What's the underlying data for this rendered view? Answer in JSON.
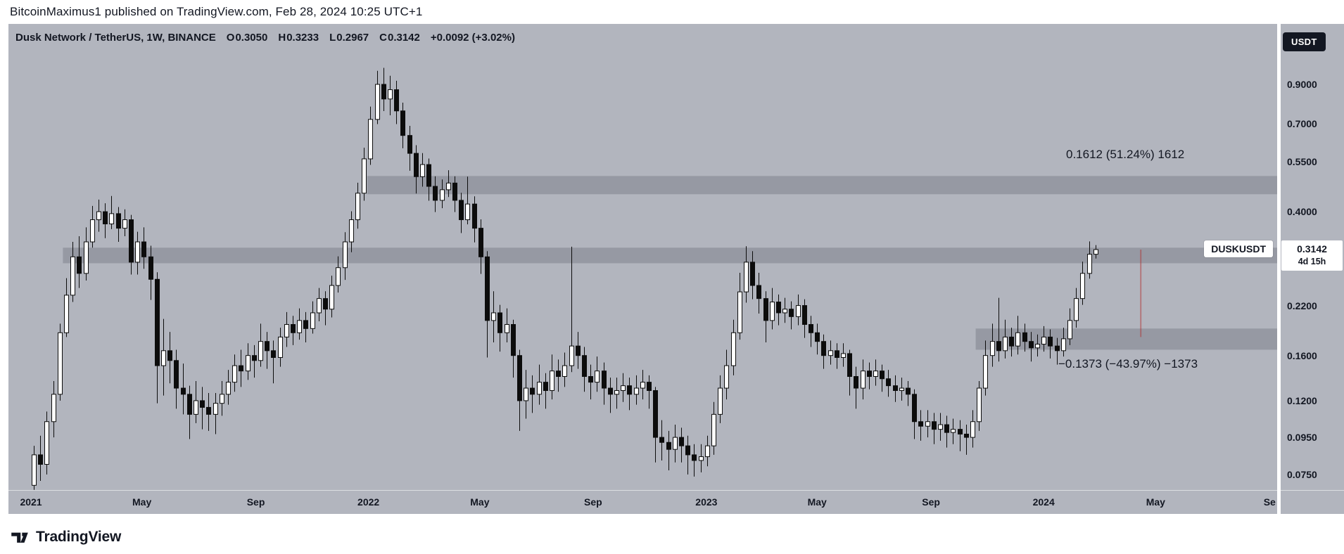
{
  "page": {
    "attribution": "BitcoinMaximus1 published on TradingView.com, Feb 28, 2024 10:25 UTC+1",
    "brand": "TradingView"
  },
  "legend": {
    "title": "Dusk Network / TetherUS, 1W, BINANCE",
    "ohlc": [
      {
        "k": "O",
        "v": "0.3050"
      },
      {
        "k": "H",
        "v": "0.3233"
      },
      {
        "k": "L",
        "v": "0.2967"
      },
      {
        "k": "C",
        "v": "0.3142"
      }
    ],
    "change": "+0.0092 (+3.02%)"
  },
  "annotations": {
    "up_measure": "0.1612 (51.24%) 1612",
    "down_measure": "−0.1373 (−43.97%) −1373"
  },
  "price_axis": {
    "currency_badge": "USDT",
    "current": {
      "symbol_label": "DUSKUSDT",
      "price": "0.3142",
      "countdown": "4d 15h",
      "value": 0.3142
    },
    "ticks": [
      {
        "label": "0.9000",
        "value": 0.9
      },
      {
        "label": "0.7000",
        "value": 0.7
      },
      {
        "label": "0.5500",
        "value": 0.55
      },
      {
        "label": "0.4000",
        "value": 0.4
      },
      {
        "label": "0.2200",
        "value": 0.22
      },
      {
        "label": "0.1600",
        "value": 0.16
      },
      {
        "label": "0.1200",
        "value": 0.12
      },
      {
        "label": "0.0950",
        "value": 0.095
      },
      {
        "label": "0.0750",
        "value": 0.075
      }
    ]
  },
  "time_axis": {
    "ticks": [
      {
        "label": "2021",
        "week": -0.43
      },
      {
        "label": "May",
        "week": 16.7
      },
      {
        "label": "Sep",
        "week": 34.3
      },
      {
        "label": "2022",
        "week": 51.7
      },
      {
        "label": "May",
        "week": 68.9
      },
      {
        "label": "Sep",
        "week": 86.4
      },
      {
        "label": "2023",
        "week": 103.9
      },
      {
        "label": "May",
        "week": 121.0
      },
      {
        "label": "Sep",
        "week": 138.6
      },
      {
        "label": "2024",
        "week": 156.0
      },
      {
        "label": "May",
        "week": 173.3
      },
      {
        "label": "Se",
        "week": 190.9
      }
    ]
  },
  "colors": {
    "page_bg": "#ffffff",
    "chart_bg": "#b2b5be",
    "text": "#131722",
    "candle_up": "#ffffff",
    "candle_down": "#0c0c0c",
    "zone_fill": "rgba(80,84,95,0.28)",
    "measure_line": "rgba(178,45,45,0.45)",
    "badge_bg": "#131722",
    "badge_text": "#ffffff",
    "label_bg": "#ffffff"
  },
  "chart_data": {
    "type": "candlestick",
    "title": "Dusk Network / TetherUS, 1W, BINANCE",
    "symbol": "DUSKUSDT",
    "exchange": "BINANCE",
    "interval": "1W",
    "scale": "log",
    "x_start": "2021-01-04",
    "x_step_days": 7,
    "ylim": [
      0.068,
      1.32
    ],
    "current_bar": {
      "open": 0.305,
      "high": 0.3233,
      "low": 0.2967,
      "close": 0.3142,
      "change": 0.0092,
      "change_pct": 3.02
    },
    "zones": [
      {
        "name": "resistance-zone-upper",
        "price_top": 0.502,
        "price_bottom": 0.447,
        "start_week": 51.5
      },
      {
        "name": "resistance-zone-mid",
        "price_top": 0.318,
        "price_bottom": 0.288,
        "start_week": 4.5
      },
      {
        "name": "support-zone-lower",
        "price_top": 0.19,
        "price_bottom": 0.166,
        "start_week": 145.5
      }
    ],
    "measures": [
      {
        "direction": "up",
        "delta": 0.1612,
        "pct": 51.24,
        "ticks": 1612,
        "from": 0.3142,
        "to": 0.4754
      },
      {
        "direction": "down",
        "delta": -0.1373,
        "pct": -43.97,
        "ticks": -1373,
        "from": 0.3142,
        "to": 0.1769
      }
    ],
    "measure_line": {
      "week": 171,
      "from_price": 0.3142,
      "to_price": 0.18
    },
    "candles": [
      [
        0.07,
        0.09,
        0.068,
        0.085
      ],
      [
        0.085,
        0.096,
        0.072,
        0.08
      ],
      [
        0.08,
        0.112,
        0.075,
        0.105
      ],
      [
        0.105,
        0.136,
        0.095,
        0.125
      ],
      [
        0.125,
        0.196,
        0.12,
        0.185
      ],
      [
        0.185,
        0.262,
        0.18,
        0.235
      ],
      [
        0.235,
        0.33,
        0.225,
        0.3
      ],
      [
        0.3,
        0.342,
        0.246,
        0.27
      ],
      [
        0.27,
        0.362,
        0.258,
        0.33
      ],
      [
        0.33,
        0.415,
        0.318,
        0.38
      ],
      [
        0.38,
        0.432,
        0.352,
        0.4
      ],
      [
        0.4,
        0.422,
        0.338,
        0.37
      ],
      [
        0.37,
        0.442,
        0.358,
        0.395
      ],
      [
        0.395,
        0.412,
        0.33,
        0.36
      ],
      [
        0.36,
        0.406,
        0.342,
        0.38
      ],
      [
        0.38,
        0.392,
        0.268,
        0.29
      ],
      [
        0.29,
        0.352,
        0.268,
        0.33
      ],
      [
        0.33,
        0.362,
        0.278,
        0.3
      ],
      [
        0.3,
        0.322,
        0.228,
        0.26
      ],
      [
        0.26,
        0.272,
        0.118,
        0.15
      ],
      [
        0.15,
        0.202,
        0.124,
        0.165
      ],
      [
        0.165,
        0.186,
        0.134,
        0.155
      ],
      [
        0.155,
        0.166,
        0.114,
        0.13
      ],
      [
        0.13,
        0.152,
        0.11,
        0.125
      ],
      [
        0.125,
        0.132,
        0.094,
        0.11
      ],
      [
        0.11,
        0.136,
        0.104,
        0.12
      ],
      [
        0.12,
        0.131,
        0.1,
        0.115
      ],
      [
        0.115,
        0.126,
        0.099,
        0.11
      ],
      [
        0.11,
        0.126,
        0.097,
        0.118
      ],
      [
        0.118,
        0.136,
        0.109,
        0.125
      ],
      [
        0.125,
        0.146,
        0.117,
        0.135
      ],
      [
        0.135,
        0.161,
        0.127,
        0.15
      ],
      [
        0.15,
        0.166,
        0.131,
        0.145
      ],
      [
        0.145,
        0.173,
        0.137,
        0.16
      ],
      [
        0.16,
        0.171,
        0.139,
        0.155
      ],
      [
        0.155,
        0.196,
        0.149,
        0.175
      ],
      [
        0.175,
        0.186,
        0.147,
        0.165
      ],
      [
        0.165,
        0.176,
        0.134,
        0.158
      ],
      [
        0.158,
        0.191,
        0.149,
        0.18
      ],
      [
        0.18,
        0.211,
        0.169,
        0.195
      ],
      [
        0.195,
        0.206,
        0.171,
        0.185
      ],
      [
        0.185,
        0.216,
        0.177,
        0.2
      ],
      [
        0.2,
        0.211,
        0.174,
        0.19
      ],
      [
        0.19,
        0.226,
        0.184,
        0.21
      ],
      [
        0.21,
        0.246,
        0.199,
        0.23
      ],
      [
        0.23,
        0.241,
        0.194,
        0.215
      ],
      [
        0.215,
        0.266,
        0.204,
        0.25
      ],
      [
        0.25,
        0.301,
        0.239,
        0.28
      ],
      [
        0.28,
        0.351,
        0.259,
        0.33
      ],
      [
        0.33,
        0.401,
        0.309,
        0.38
      ],
      [
        0.38,
        0.481,
        0.359,
        0.45
      ],
      [
        0.45,
        0.601,
        0.429,
        0.56
      ],
      [
        0.56,
        0.781,
        0.539,
        0.72
      ],
      [
        0.72,
        0.981,
        0.699,
        0.9
      ],
      [
        0.9,
        1.0,
        0.759,
        0.82
      ],
      [
        0.82,
        0.951,
        0.739,
        0.87
      ],
      [
        0.87,
        0.921,
        0.699,
        0.76
      ],
      [
        0.76,
        0.801,
        0.599,
        0.65
      ],
      [
        0.65,
        0.691,
        0.519,
        0.58
      ],
      [
        0.58,
        0.611,
        0.449,
        0.5
      ],
      [
        0.5,
        0.581,
        0.469,
        0.54
      ],
      [
        0.54,
        0.561,
        0.429,
        0.47
      ],
      [
        0.47,
        0.501,
        0.399,
        0.43
      ],
      [
        0.43,
        0.491,
        0.409,
        0.46
      ],
      [
        0.46,
        0.521,
        0.439,
        0.48
      ],
      [
        0.48,
        0.501,
        0.399,
        0.43
      ],
      [
        0.43,
        0.451,
        0.349,
        0.38
      ],
      [
        0.38,
        0.5,
        0.369,
        0.42
      ],
      [
        0.42,
        0.441,
        0.329,
        0.36
      ],
      [
        0.36,
        0.381,
        0.269,
        0.3
      ],
      [
        0.3,
        0.311,
        0.158,
        0.2
      ],
      [
        0.2,
        0.241,
        0.174,
        0.21
      ],
      [
        0.21,
        0.221,
        0.164,
        0.185
      ],
      [
        0.185,
        0.216,
        0.174,
        0.195
      ],
      [
        0.195,
        0.201,
        0.139,
        0.16
      ],
      [
        0.16,
        0.166,
        0.099,
        0.12
      ],
      [
        0.12,
        0.146,
        0.107,
        0.13
      ],
      [
        0.13,
        0.141,
        0.111,
        0.125
      ],
      [
        0.125,
        0.151,
        0.117,
        0.135
      ],
      [
        0.135,
        0.143,
        0.114,
        0.128
      ],
      [
        0.128,
        0.161,
        0.121,
        0.145
      ],
      [
        0.145,
        0.156,
        0.127,
        0.14
      ],
      [
        0.14,
        0.163,
        0.131,
        0.15
      ],
      [
        0.15,
        0.32,
        0.144,
        0.17
      ],
      [
        0.17,
        0.186,
        0.147,
        0.16
      ],
      [
        0.16,
        0.169,
        0.127,
        0.14
      ],
      [
        0.14,
        0.151,
        0.121,
        0.135
      ],
      [
        0.135,
        0.159,
        0.127,
        0.145
      ],
      [
        0.145,
        0.153,
        0.117,
        0.13
      ],
      [
        0.13,
        0.139,
        0.111,
        0.125
      ],
      [
        0.125,
        0.139,
        0.114,
        0.128
      ],
      [
        0.128,
        0.143,
        0.119,
        0.132
      ],
      [
        0.132,
        0.139,
        0.113,
        0.125
      ],
      [
        0.125,
        0.141,
        0.117,
        0.13
      ],
      [
        0.13,
        0.146,
        0.121,
        0.135
      ],
      [
        0.135,
        0.141,
        0.114,
        0.128
      ],
      [
        0.128,
        0.131,
        0.081,
        0.095
      ],
      [
        0.095,
        0.106,
        0.082,
        0.092
      ],
      [
        0.092,
        0.099,
        0.077,
        0.088
      ],
      [
        0.088,
        0.103,
        0.081,
        0.095
      ],
      [
        0.095,
        0.101,
        0.081,
        0.09
      ],
      [
        0.09,
        0.096,
        0.075,
        0.085
      ],
      [
        0.085,
        0.091,
        0.074,
        0.082
      ],
      [
        0.082,
        0.091,
        0.076,
        0.084
      ],
      [
        0.084,
        0.096,
        0.079,
        0.09
      ],
      [
        0.09,
        0.119,
        0.085,
        0.11
      ],
      [
        0.11,
        0.141,
        0.104,
        0.13
      ],
      [
        0.13,
        0.166,
        0.121,
        0.15
      ],
      [
        0.15,
        0.201,
        0.141,
        0.185
      ],
      [
        0.185,
        0.271,
        0.177,
        0.24
      ],
      [
        0.24,
        0.321,
        0.224,
        0.29
      ],
      [
        0.29,
        0.311,
        0.229,
        0.25
      ],
      [
        0.25,
        0.271,
        0.209,
        0.23
      ],
      [
        0.23,
        0.241,
        0.174,
        0.2
      ],
      [
        0.2,
        0.246,
        0.189,
        0.225
      ],
      [
        0.225,
        0.236,
        0.194,
        0.21
      ],
      [
        0.21,
        0.231,
        0.197,
        0.215
      ],
      [
        0.215,
        0.226,
        0.189,
        0.205
      ],
      [
        0.205,
        0.236,
        0.194,
        0.22
      ],
      [
        0.22,
        0.229,
        0.179,
        0.195
      ],
      [
        0.195,
        0.206,
        0.169,
        0.185
      ],
      [
        0.185,
        0.196,
        0.161,
        0.175
      ],
      [
        0.175,
        0.183,
        0.147,
        0.16
      ],
      [
        0.16,
        0.176,
        0.151,
        0.165
      ],
      [
        0.165,
        0.173,
        0.147,
        0.158
      ],
      [
        0.158,
        0.173,
        0.149,
        0.162
      ],
      [
        0.162,
        0.166,
        0.124,
        0.14
      ],
      [
        0.14,
        0.149,
        0.114,
        0.13
      ],
      [
        0.13,
        0.156,
        0.121,
        0.145
      ],
      [
        0.145,
        0.153,
        0.129,
        0.14
      ],
      [
        0.14,
        0.156,
        0.132,
        0.145
      ],
      [
        0.145,
        0.151,
        0.127,
        0.138
      ],
      [
        0.138,
        0.146,
        0.123,
        0.132
      ],
      [
        0.132,
        0.141,
        0.119,
        0.128
      ],
      [
        0.128,
        0.139,
        0.12,
        0.13
      ],
      [
        0.13,
        0.136,
        0.116,
        0.125
      ],
      [
        0.125,
        0.129,
        0.094,
        0.105
      ],
      [
        0.105,
        0.113,
        0.093,
        0.102
      ],
      [
        0.102,
        0.113,
        0.095,
        0.105
      ],
      [
        0.105,
        0.111,
        0.091,
        0.1
      ],
      [
        0.1,
        0.111,
        0.093,
        0.103
      ],
      [
        0.103,
        0.109,
        0.089,
        0.098
      ],
      [
        0.098,
        0.107,
        0.091,
        0.1
      ],
      [
        0.1,
        0.106,
        0.087,
        0.097
      ],
      [
        0.097,
        0.103,
        0.085,
        0.095
      ],
      [
        0.095,
        0.113,
        0.089,
        0.105
      ],
      [
        0.105,
        0.136,
        0.099,
        0.13
      ],
      [
        0.13,
        0.176,
        0.124,
        0.16
      ],
      [
        0.16,
        0.196,
        0.149,
        0.175
      ],
      [
        0.175,
        0.231,
        0.154,
        0.165
      ],
      [
        0.165,
        0.201,
        0.157,
        0.18
      ],
      [
        0.18,
        0.191,
        0.159,
        0.17
      ],
      [
        0.17,
        0.206,
        0.161,
        0.185
      ],
      [
        0.185,
        0.196,
        0.164,
        0.175
      ],
      [
        0.175,
        0.186,
        0.154,
        0.168
      ],
      [
        0.168,
        0.183,
        0.159,
        0.172
      ],
      [
        0.172,
        0.193,
        0.164,
        0.18
      ],
      [
        0.18,
        0.189,
        0.157,
        0.17
      ],
      [
        0.17,
        0.179,
        0.151,
        0.165
      ],
      [
        0.165,
        0.191,
        0.159,
        0.178
      ],
      [
        0.178,
        0.216,
        0.171,
        0.2
      ],
      [
        0.2,
        0.246,
        0.191,
        0.23
      ],
      [
        0.23,
        0.291,
        0.221,
        0.27
      ],
      [
        0.27,
        0.331,
        0.261,
        0.305
      ],
      [
        0.305,
        0.3233,
        0.2967,
        0.3142
      ]
    ]
  }
}
